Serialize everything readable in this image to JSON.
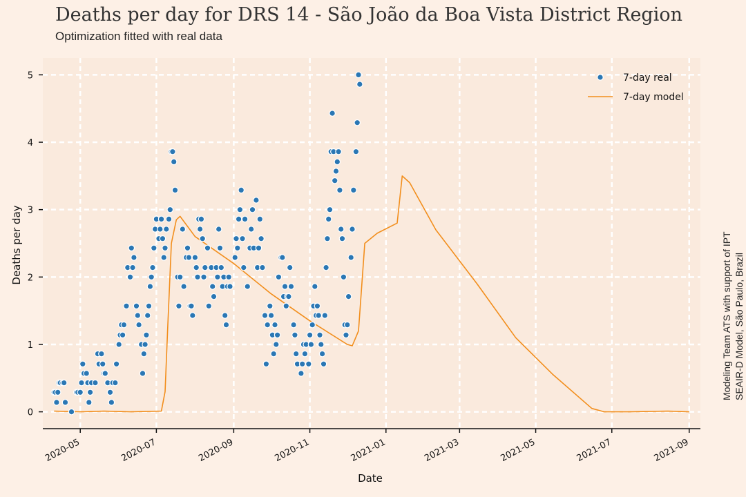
{
  "title": "Deaths per day for DRS 14 - São João da Boa Vista District Region",
  "subtitle": "Optimization fitted with real data",
  "credit_line1": "Modeling Team ATS with support of IPT",
  "credit_line2": "SEAIR-D Model, São Paulo, Brazil",
  "colors": {
    "background": "#fdf0e6",
    "plot_area": "#faeadd",
    "real": "#2a77b4",
    "model": "#f28e1c",
    "grid": "#ffffff"
  },
  "chart_data": {
    "type": "scatter",
    "xlabel": "Date",
    "ylabel": "Deaths per day",
    "xlim": [
      "2020-04-01",
      "2021-09-10"
    ],
    "ylim": [
      -0.25,
      5.25
    ],
    "grid": true,
    "legend_position": "top-right",
    "x_ticks": [
      "2020-05",
      "2020-07",
      "2020-09",
      "2020-11",
      "2021-01",
      "2021-03",
      "2021-05",
      "2021-07",
      "2021-09"
    ],
    "y_ticks": [
      0,
      1,
      2,
      3,
      4,
      5
    ],
    "series": [
      {
        "name": "7-day real",
        "kind": "scatter",
        "points": [
          [
            "2020-04-10",
            0.29
          ],
          [
            "2020-04-11",
            0.29
          ],
          [
            "2020-04-12",
            0.14
          ],
          [
            "2020-04-13",
            0.29
          ],
          [
            "2020-04-14",
            0.43
          ],
          [
            "2020-04-15",
            0.43
          ],
          [
            "2020-04-17",
            0.43
          ],
          [
            "2020-04-18",
            0.43
          ],
          [
            "2020-04-19",
            0.14
          ],
          [
            "2020-04-24",
            0.0
          ],
          [
            "2020-04-28",
            0.29
          ],
          [
            "2020-04-29",
            0.29
          ],
          [
            "2020-05-01",
            0.29
          ],
          [
            "2020-05-02",
            0.43
          ],
          [
            "2020-05-03",
            0.71
          ],
          [
            "2020-05-04",
            0.57
          ],
          [
            "2020-05-06",
            0.57
          ],
          [
            "2020-05-07",
            0.43
          ],
          [
            "2020-05-08",
            0.14
          ],
          [
            "2020-05-09",
            0.29
          ],
          [
            "2020-05-10",
            0.43
          ],
          [
            "2020-05-13",
            0.43
          ],
          [
            "2020-05-15",
            0.86
          ],
          [
            "2020-05-16",
            0.71
          ],
          [
            "2020-05-18",
            0.86
          ],
          [
            "2020-05-19",
            0.71
          ],
          [
            "2020-05-20",
            0.57
          ],
          [
            "2020-05-21",
            0.57
          ],
          [
            "2020-05-23",
            0.43
          ],
          [
            "2020-05-25",
            0.29
          ],
          [
            "2020-05-26",
            0.14
          ],
          [
            "2020-05-27",
            0.43
          ],
          [
            "2020-05-29",
            0.43
          ],
          [
            "2020-05-30",
            0.71
          ],
          [
            "2020-06-01",
            1.0
          ],
          [
            "2020-06-02",
            1.14
          ],
          [
            "2020-06-03",
            1.29
          ],
          [
            "2020-06-04",
            1.14
          ],
          [
            "2020-06-05",
            1.29
          ],
          [
            "2020-06-07",
            1.57
          ],
          [
            "2020-06-08",
            2.14
          ],
          [
            "2020-06-10",
            2.0
          ],
          [
            "2020-06-11",
            2.43
          ],
          [
            "2020-06-12",
            2.14
          ],
          [
            "2020-06-13",
            2.29
          ],
          [
            "2020-06-15",
            1.57
          ],
          [
            "2020-06-16",
            1.43
          ],
          [
            "2020-06-17",
            1.29
          ],
          [
            "2020-06-19",
            1.0
          ],
          [
            "2020-06-20",
            0.57
          ],
          [
            "2020-06-21",
            0.86
          ],
          [
            "2020-06-22",
            1.0
          ],
          [
            "2020-06-23",
            1.14
          ],
          [
            "2020-06-24",
            1.43
          ],
          [
            "2020-06-25",
            1.57
          ],
          [
            "2020-06-26",
            1.86
          ],
          [
            "2020-06-27",
            2.0
          ],
          [
            "2020-06-28",
            2.14
          ],
          [
            "2020-06-29",
            2.43
          ],
          [
            "2020-06-30",
            2.71
          ],
          [
            "2020-07-01",
            2.86
          ],
          [
            "2020-07-03",
            2.57
          ],
          [
            "2020-07-04",
            2.71
          ],
          [
            "2020-07-05",
            2.86
          ],
          [
            "2020-07-06",
            2.57
          ],
          [
            "2020-07-07",
            2.29
          ],
          [
            "2020-07-08",
            2.43
          ],
          [
            "2020-07-09",
            2.71
          ],
          [
            "2020-07-11",
            2.86
          ],
          [
            "2020-07-12",
            3.0
          ],
          [
            "2020-07-13",
            3.86
          ],
          [
            "2020-07-14",
            3.86
          ],
          [
            "2020-07-15",
            3.71
          ],
          [
            "2020-07-16",
            3.29
          ],
          [
            "2020-07-18",
            2.0
          ],
          [
            "2020-07-19",
            1.57
          ],
          [
            "2020-07-20",
            2.0
          ],
          [
            "2020-07-22",
            2.71
          ],
          [
            "2020-07-23",
            1.86
          ],
          [
            "2020-07-25",
            2.29
          ],
          [
            "2020-07-26",
            2.43
          ],
          [
            "2020-07-27",
            2.29
          ],
          [
            "2020-07-28",
            1.57
          ],
          [
            "2020-07-29",
            1.57
          ],
          [
            "2020-07-30",
            1.43
          ],
          [
            "2020-08-01",
            2.29
          ],
          [
            "2020-08-02",
            2.14
          ],
          [
            "2020-08-03",
            2.0
          ],
          [
            "2020-08-04",
            2.86
          ],
          [
            "2020-08-05",
            2.71
          ],
          [
            "2020-08-06",
            2.86
          ],
          [
            "2020-08-07",
            2.57
          ],
          [
            "2020-08-08",
            2.0
          ],
          [
            "2020-08-09",
            2.14
          ],
          [
            "2020-08-11",
            2.43
          ],
          [
            "2020-08-12",
            1.57
          ],
          [
            "2020-08-14",
            2.14
          ],
          [
            "2020-08-15",
            1.86
          ],
          [
            "2020-08-16",
            1.71
          ],
          [
            "2020-08-18",
            2.14
          ],
          [
            "2020-08-19",
            2.0
          ],
          [
            "2020-08-20",
            2.71
          ],
          [
            "2020-08-21",
            2.43
          ],
          [
            "2020-08-22",
            2.14
          ],
          [
            "2020-08-23",
            1.86
          ],
          [
            "2020-08-24",
            2.0
          ],
          [
            "2020-08-25",
            1.43
          ],
          [
            "2020-08-26",
            1.29
          ],
          [
            "2020-08-27",
            1.86
          ],
          [
            "2020-08-28",
            2.0
          ],
          [
            "2020-08-29",
            1.86
          ],
          [
            "2020-09-02",
            2.29
          ],
          [
            "2020-09-03",
            2.57
          ],
          [
            "2020-09-04",
            2.43
          ],
          [
            "2020-09-05",
            2.86
          ],
          [
            "2020-09-06",
            3.0
          ],
          [
            "2020-09-07",
            3.29
          ],
          [
            "2020-09-08",
            2.57
          ],
          [
            "2020-09-09",
            2.14
          ],
          [
            "2020-09-10",
            2.86
          ],
          [
            "2020-09-12",
            1.86
          ],
          [
            "2020-09-14",
            2.43
          ],
          [
            "2020-09-15",
            2.71
          ],
          [
            "2020-09-16",
            3.0
          ],
          [
            "2020-09-17",
            2.43
          ],
          [
            "2020-09-19",
            3.14
          ],
          [
            "2020-09-20",
            2.14
          ],
          [
            "2020-09-21",
            2.43
          ],
          [
            "2020-09-22",
            2.86
          ],
          [
            "2020-09-23",
            2.57
          ],
          [
            "2020-09-24",
            2.14
          ],
          [
            "2020-09-26",
            1.43
          ],
          [
            "2020-09-27",
            0.71
          ],
          [
            "2020-09-28",
            1.29
          ],
          [
            "2020-09-30",
            1.57
          ],
          [
            "2020-10-01",
            1.43
          ],
          [
            "2020-10-02",
            1.14
          ],
          [
            "2020-10-03",
            0.86
          ],
          [
            "2020-10-04",
            1.29
          ],
          [
            "2020-10-05",
            1.0
          ],
          [
            "2020-10-06",
            1.14
          ],
          [
            "2020-10-07",
            2.0
          ],
          [
            "2020-10-09",
            2.29
          ],
          [
            "2020-10-10",
            2.29
          ],
          [
            "2020-10-11",
            1.71
          ],
          [
            "2020-10-12",
            1.86
          ],
          [
            "2020-10-13",
            1.57
          ],
          [
            "2020-10-14",
            1.71
          ],
          [
            "2020-10-15",
            1.71
          ],
          [
            "2020-10-16",
            2.14
          ],
          [
            "2020-10-17",
            1.86
          ],
          [
            "2020-10-19",
            1.29
          ],
          [
            "2020-10-20",
            1.14
          ],
          [
            "2020-10-21",
            0.86
          ],
          [
            "2020-10-22",
            0.71
          ],
          [
            "2020-10-25",
            0.57
          ],
          [
            "2020-10-26",
            0.71
          ],
          [
            "2020-10-27",
            1.0
          ],
          [
            "2020-10-28",
            0.86
          ],
          [
            "2020-10-29",
            1.0
          ],
          [
            "2020-10-31",
            0.71
          ],
          [
            "2020-11-01",
            1.14
          ],
          [
            "2020-11-02",
            1.0
          ],
          [
            "2020-11-03",
            1.29
          ],
          [
            "2020-11-04",
            1.57
          ],
          [
            "2020-11-05",
            1.86
          ],
          [
            "2020-11-06",
            1.43
          ],
          [
            "2020-11-07",
            1.57
          ],
          [
            "2020-11-08",
            1.43
          ],
          [
            "2020-11-09",
            1.14
          ],
          [
            "2020-11-10",
            1.0
          ],
          [
            "2020-11-11",
            0.86
          ],
          [
            "2020-11-12",
            0.71
          ],
          [
            "2020-11-13",
            1.43
          ],
          [
            "2020-11-14",
            2.14
          ],
          [
            "2020-11-15",
            2.57
          ],
          [
            "2020-11-16",
            2.86
          ],
          [
            "2020-11-17",
            3.0
          ],
          [
            "2020-11-18",
            3.86
          ],
          [
            "2020-11-19",
            4.43
          ],
          [
            "2020-11-20",
            3.86
          ],
          [
            "2020-11-21",
            3.43
          ],
          [
            "2020-11-22",
            3.57
          ],
          [
            "2020-11-23",
            3.71
          ],
          [
            "2020-11-24",
            3.86
          ],
          [
            "2020-11-25",
            3.29
          ],
          [
            "2020-11-26",
            2.71
          ],
          [
            "2020-11-27",
            2.57
          ],
          [
            "2020-11-28",
            2.0
          ],
          [
            "2020-11-29",
            1.29
          ],
          [
            "2020-11-30",
            1.14
          ],
          [
            "2020-12-01",
            1.29
          ],
          [
            "2020-12-02",
            1.71
          ],
          [
            "2020-12-04",
            2.29
          ],
          [
            "2020-12-05",
            2.71
          ],
          [
            "2020-12-06",
            3.29
          ],
          [
            "2020-12-08",
            3.86
          ],
          [
            "2020-12-09",
            4.29
          ],
          [
            "2020-12-10",
            5.0
          ],
          [
            "2020-12-11",
            4.86
          ]
        ]
      },
      {
        "name": "7-day model",
        "kind": "line",
        "points": [
          [
            "2020-04-10",
            0.01
          ],
          [
            "2020-05-01",
            0.0
          ],
          [
            "2020-05-20",
            0.01
          ],
          [
            "2020-06-10",
            0.0
          ],
          [
            "2020-07-05",
            0.01
          ],
          [
            "2020-07-08",
            0.3
          ],
          [
            "2020-07-10",
            1.2
          ],
          [
            "2020-07-13",
            2.5
          ],
          [
            "2020-07-17",
            2.85
          ],
          [
            "2020-07-20",
            2.9
          ],
          [
            "2020-08-01",
            2.6
          ],
          [
            "2020-09-01",
            2.2
          ],
          [
            "2020-10-01",
            1.75
          ],
          [
            "2020-11-01",
            1.35
          ],
          [
            "2020-12-01",
            1.0
          ],
          [
            "2020-12-05",
            0.98
          ],
          [
            "2020-12-10",
            1.2
          ],
          [
            "2020-12-15",
            2.5
          ],
          [
            "2020-12-25",
            2.65
          ],
          [
            "2021-01-10",
            2.8
          ],
          [
            "2021-01-14",
            3.5
          ],
          [
            "2021-01-20",
            3.4
          ],
          [
            "2021-02-10",
            2.7
          ],
          [
            "2021-03-15",
            1.9
          ],
          [
            "2021-04-15",
            1.1
          ],
          [
            "2021-05-15",
            0.55
          ],
          [
            "2021-06-15",
            0.05
          ],
          [
            "2021-06-25",
            0.0
          ],
          [
            "2021-07-15",
            0.0
          ],
          [
            "2021-08-15",
            0.01
          ],
          [
            "2021-09-01",
            0.0
          ]
        ]
      }
    ]
  }
}
